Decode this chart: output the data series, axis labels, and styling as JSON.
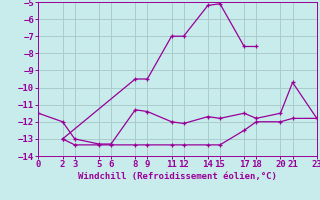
{
  "xlabel": "Windchill (Refroidissement éolien,°C)",
  "bg_color": "#c8ecec",
  "line_color": "#990099",
  "grid_color": "#aacccc",
  "xlim": [
    0,
    23
  ],
  "ylim": [
    -14,
    -5
  ],
  "xticks": [
    0,
    2,
    3,
    5,
    6,
    8,
    9,
    11,
    12,
    14,
    15,
    17,
    18,
    20,
    21,
    23
  ],
  "yticks": [
    -5,
    -6,
    -7,
    -8,
    -9,
    -10,
    -11,
    -12,
    -13,
    -14
  ],
  "line1_x": [
    2,
    8,
    9,
    11,
    12,
    14,
    15,
    17,
    18
  ],
  "line1_y": [
    -13.0,
    -9.5,
    -9.5,
    -7.0,
    -7.0,
    -5.2,
    -5.1,
    -7.6,
    -7.6
  ],
  "line2_x": [
    0,
    2,
    3,
    5,
    6,
    8,
    9,
    11,
    12,
    14,
    15,
    17,
    18,
    20,
    21,
    23
  ],
  "line2_y": [
    -11.5,
    -12.0,
    -13.0,
    -13.3,
    -13.3,
    -11.3,
    -11.4,
    -12.0,
    -12.1,
    -11.7,
    -11.8,
    -11.5,
    -11.8,
    -11.5,
    -9.7,
    -11.8
  ],
  "line3_x": [
    2,
    3,
    5,
    6,
    8,
    9,
    11,
    12,
    14,
    15,
    17,
    18,
    20,
    21,
    23
  ],
  "line3_y": [
    -13.0,
    -13.35,
    -13.35,
    -13.35,
    -13.35,
    -13.35,
    -13.35,
    -13.35,
    -13.35,
    -13.35,
    -12.5,
    -12.0,
    -12.0,
    -11.8,
    -11.8
  ],
  "font_size": 6.5,
  "marker": "+",
  "marker_size": 3.5,
  "lw": 0.9
}
